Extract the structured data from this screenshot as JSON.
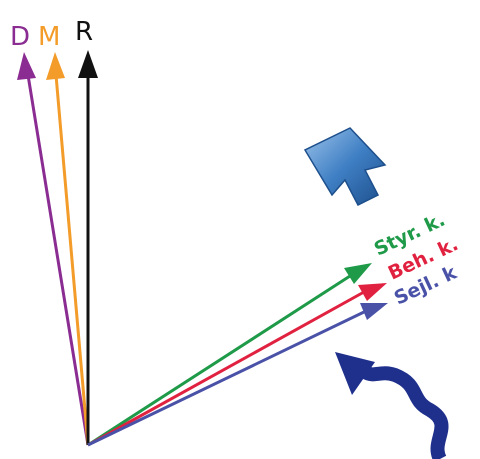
{
  "labels": {
    "d": "D",
    "m": "M",
    "r": "R",
    "styr": "Styr. k.",
    "beh": "Beh. k.",
    "sejl": "Sejl. k"
  }
}
